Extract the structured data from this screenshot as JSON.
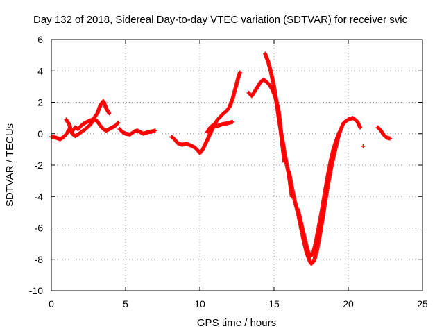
{
  "chart_data": {
    "type": "scatter",
    "title": "Day 132 of 2018, Sidereal Day-to-day VTEC variation (SDTVAR) for receiver svic",
    "xlabel": "GPS time / hours",
    "ylabel": "SDTVAR / TECUs",
    "xlim": [
      0,
      25
    ],
    "ylim": [
      -10,
      6
    ],
    "xticks": [
      "0",
      "5",
      "10",
      "15",
      "20",
      "25"
    ],
    "yticks": [
      "-10",
      "-8",
      "-6",
      "-4",
      "-2",
      "0",
      "2",
      "4",
      "6"
    ],
    "grid": true,
    "marker": "plus",
    "color": "#ff0000",
    "series": [
      {
        "segments": [
          [
            [
              0.0,
              -0.2
            ],
            [
              0.3,
              -0.25
            ],
            [
              0.6,
              -0.35
            ],
            [
              0.9,
              -0.15
            ],
            [
              1.1,
              0.1
            ],
            [
              1.2,
              0.3
            ],
            [
              1.4,
              0.15
            ],
            [
              1.6,
              0.4
            ],
            [
              1.8,
              0.3
            ],
            [
              2.0,
              0.5
            ],
            [
              2.2,
              0.65
            ],
            [
              2.5,
              0.8
            ],
            [
              2.8,
              0.9
            ],
            [
              3.1,
              1.3
            ],
            [
              3.3,
              1.8
            ],
            [
              3.5,
              2.1
            ],
            [
              3.7,
              1.6
            ],
            [
              3.9,
              1.3
            ]
          ],
          [
            [
              1.0,
              0.9
            ],
            [
              1.2,
              0.6
            ],
            [
              1.4,
              0.0
            ],
            [
              1.6,
              -0.15
            ],
            [
              1.8,
              -0.05
            ],
            [
              2.0,
              0.1
            ],
            [
              2.3,
              0.3
            ],
            [
              2.6,
              0.55
            ],
            [
              2.9,
              0.9
            ],
            [
              3.1,
              0.8
            ],
            [
              3.3,
              0.5
            ],
            [
              3.5,
              0.3
            ],
            [
              3.7,
              0.2
            ],
            [
              3.9,
              0.3
            ],
            [
              4.1,
              0.4
            ],
            [
              4.3,
              0.5
            ],
            [
              4.5,
              0.7
            ]
          ],
          [
            [
              4.6,
              0.3
            ],
            [
              4.8,
              0.1
            ],
            [
              5.0,
              0.0
            ],
            [
              5.3,
              -0.05
            ],
            [
              5.6,
              0.15
            ],
            [
              5.8,
              0.2
            ],
            [
              6.0,
              0.1
            ],
            [
              6.2,
              0.0
            ],
            [
              6.5,
              0.1
            ],
            [
              6.8,
              0.15
            ],
            [
              7.0,
              0.2
            ]
          ],
          [
            [
              8.1,
              -0.2
            ],
            [
              8.3,
              -0.35
            ],
            [
              8.5,
              -0.6
            ],
            [
              8.8,
              -0.7
            ],
            [
              9.1,
              -0.65
            ],
            [
              9.4,
              -0.75
            ],
            [
              9.7,
              -0.9
            ],
            [
              9.9,
              -1.1
            ],
            [
              10.0,
              -1.25
            ],
            [
              10.2,
              -1.0
            ],
            [
              10.4,
              -0.6
            ],
            [
              10.6,
              -0.2
            ],
            [
              10.8,
              0.2
            ],
            [
              11.0,
              0.6
            ],
            [
              11.2,
              0.9
            ],
            [
              11.4,
              1.1
            ],
            [
              11.6,
              1.3
            ],
            [
              11.8,
              1.45
            ],
            [
              12.0,
              1.7
            ],
            [
              12.2,
              2.2
            ],
            [
              12.4,
              2.9
            ],
            [
              12.6,
              3.6
            ],
            [
              12.7,
              3.9
            ]
          ],
          [
            [
              10.5,
              0.1
            ],
            [
              10.7,
              0.4
            ],
            [
              10.9,
              0.55
            ],
            [
              11.2,
              0.5
            ],
            [
              11.5,
              0.6
            ],
            [
              11.8,
              0.65
            ],
            [
              12.0,
              0.7
            ],
            [
              12.2,
              0.75
            ]
          ],
          [
            [
              13.3,
              2.6
            ],
            [
              13.5,
              2.4
            ],
            [
              13.7,
              2.7
            ],
            [
              13.9,
              3.0
            ],
            [
              14.1,
              3.3
            ],
            [
              14.3,
              3.45
            ],
            [
              14.5,
              3.3
            ],
            [
              14.7,
              3.1
            ],
            [
              14.9,
              2.8
            ],
            [
              15.1,
              2.3
            ],
            [
              15.3,
              1.5
            ],
            [
              15.4,
              0.7
            ],
            [
              15.5,
              -0.2
            ],
            [
              15.6,
              -1.0
            ],
            [
              15.7,
              -1.8
            ]
          ],
          [
            [
              14.4,
              5.1
            ],
            [
              14.6,
              4.6
            ],
            [
              14.8,
              3.9
            ],
            [
              15.0,
              3.0
            ],
            [
              15.2,
              1.8
            ],
            [
              15.4,
              0.5
            ],
            [
              15.6,
              -0.6
            ],
            [
              15.8,
              -1.7
            ],
            [
              16.0,
              -2.6
            ],
            [
              16.1,
              -3.3
            ],
            [
              16.2,
              -4.0
            ]
          ],
          [
            [
              16.0,
              -2.4
            ],
            [
              16.2,
              -3.4
            ],
            [
              16.4,
              -4.3
            ],
            [
              16.6,
              -5.0
            ],
            [
              16.8,
              -5.9
            ],
            [
              17.0,
              -6.8
            ],
            [
              17.2,
              -7.6
            ],
            [
              17.4,
              -8.1
            ],
            [
              17.5,
              -8.3
            ],
            [
              17.7,
              -8.1
            ],
            [
              17.9,
              -7.4
            ],
            [
              18.1,
              -6.4
            ],
            [
              18.3,
              -5.2
            ],
            [
              18.5,
              -4.0
            ],
            [
              18.7,
              -2.9
            ],
            [
              18.9,
              -1.9
            ],
            [
              19.1,
              -1.1
            ],
            [
              19.3,
              -0.3
            ],
            [
              19.5,
              0.3
            ],
            [
              19.7,
              0.7
            ],
            [
              20.0,
              0.9
            ],
            [
              20.3,
              1.0
            ],
            [
              20.6,
              0.8
            ],
            [
              20.8,
              0.4
            ]
          ],
          [
            [
              16.6,
              -4.8
            ],
            [
              16.8,
              -5.6
            ],
            [
              17.0,
              -6.4
            ],
            [
              17.2,
              -7.2
            ],
            [
              17.4,
              -7.8
            ],
            [
              17.6,
              -7.7
            ],
            [
              17.8,
              -7.0
            ],
            [
              18.0,
              -6.0
            ],
            [
              18.2,
              -5.0
            ],
            [
              18.4,
              -3.9
            ],
            [
              18.6,
              -2.8
            ],
            [
              18.8,
              -1.8
            ],
            [
              19.0,
              -1.0
            ],
            [
              19.2,
              -0.4
            ],
            [
              19.4,
              0.1
            ]
          ],
          [
            [
              21.0,
              -0.8
            ]
          ],
          [
            [
              22.0,
              0.4
            ],
            [
              22.2,
              0.2
            ],
            [
              22.4,
              -0.1
            ],
            [
              22.6,
              -0.25
            ],
            [
              22.8,
              -0.3
            ]
          ]
        ]
      }
    ]
  }
}
